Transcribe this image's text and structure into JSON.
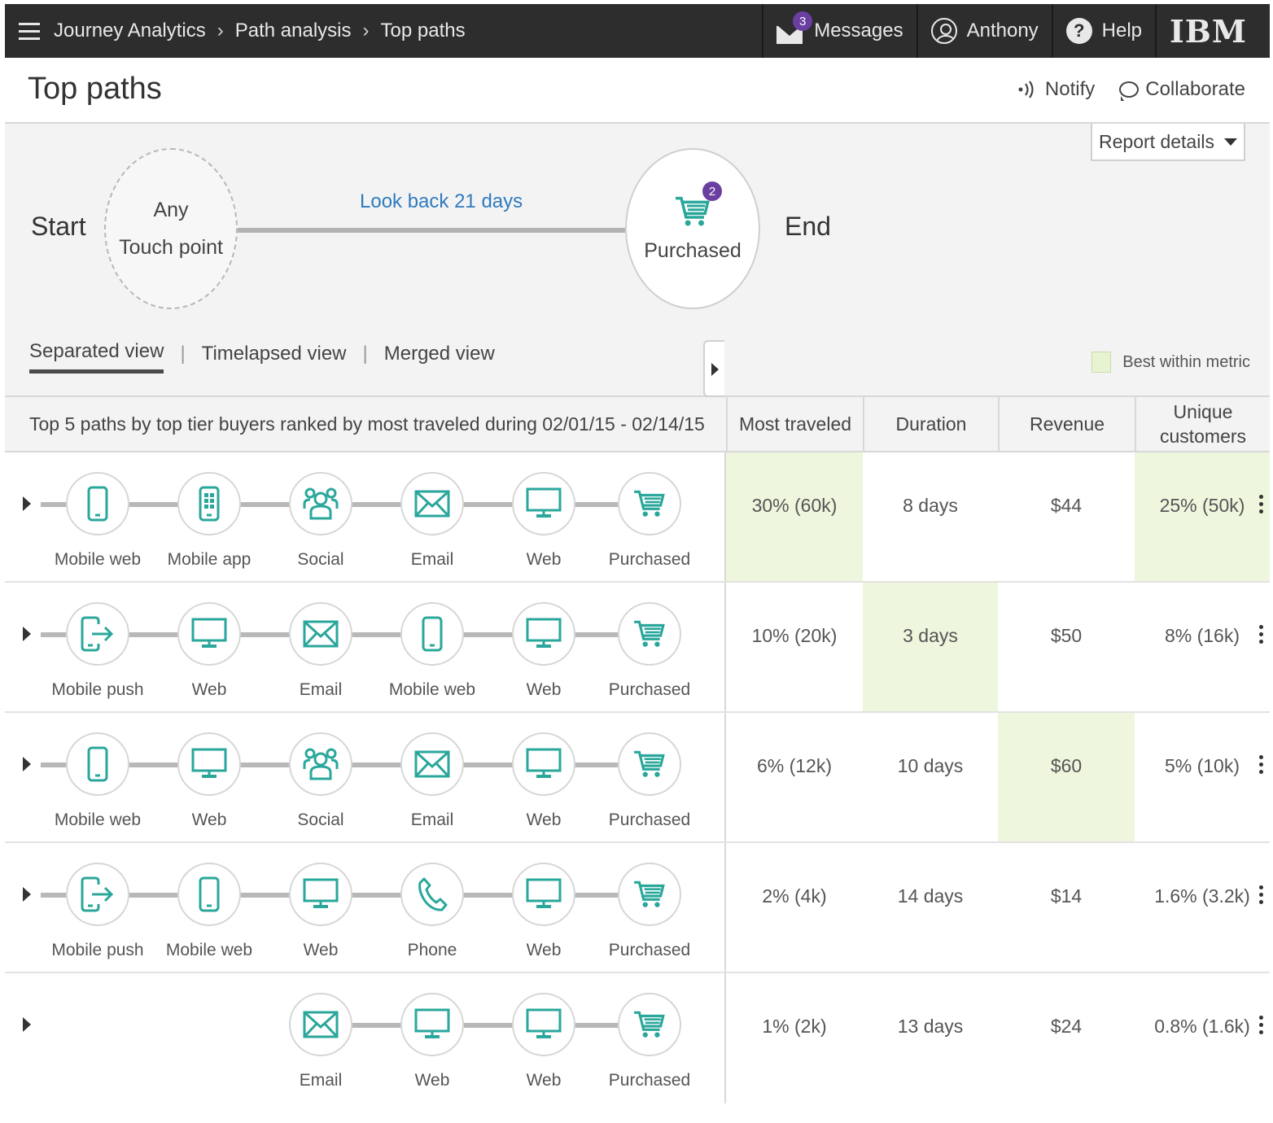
{
  "header": {
    "breadcrumbs": [
      "Journey Analytics",
      "Path analysis",
      "Top paths"
    ],
    "messages_label": "Messages",
    "messages_count": "3",
    "user_label": "Anthony",
    "help_label": "Help",
    "brand": "IBM"
  },
  "page": {
    "title": "Top paths",
    "notify_label": "Notify",
    "collaborate_label": "Collaborate"
  },
  "config": {
    "report_details_label": "Report details",
    "start_label": "Start",
    "end_label": "End",
    "start_node_line1": "Any",
    "start_node_line2": "Touch point",
    "lookback_label": "Look back 21 days",
    "end_node_label": "Purchased",
    "end_node_badge": "2",
    "views": [
      "Separated view",
      "Timelapsed view",
      "Merged view"
    ],
    "active_view": "Separated view",
    "legend_label": "Best within metric"
  },
  "table": {
    "caption": "Top 5 paths by top tier buyers ranked by most traveled during 02/01/15 - 02/14/15",
    "columns": [
      "Most traveled",
      "Duration",
      "Revenue",
      "Unique\ncustomers"
    ],
    "rows": [
      {
        "steps": [
          {
            "icon": "mobile-web-icon",
            "label": "Mobile web"
          },
          {
            "icon": "mobile-app-icon",
            "label": "Mobile app"
          },
          {
            "icon": "social-icon",
            "label": "Social"
          },
          {
            "icon": "email-icon",
            "label": "Email"
          },
          {
            "icon": "web-icon",
            "label": "Web"
          },
          {
            "icon": "cart-icon",
            "label": "Purchased"
          }
        ],
        "most_traveled": "30% (60k)",
        "duration": "8 days",
        "revenue": "$44",
        "unique": "25% (50k)",
        "best": [
          "most_traveled",
          "unique"
        ]
      },
      {
        "steps": [
          {
            "icon": "mobile-push-icon",
            "label": "Mobile push"
          },
          {
            "icon": "web-icon",
            "label": "Web"
          },
          {
            "icon": "email-icon",
            "label": "Email"
          },
          {
            "icon": "mobile-web-icon",
            "label": "Mobile web"
          },
          {
            "icon": "web-icon",
            "label": "Web"
          },
          {
            "icon": "cart-icon",
            "label": "Purchased"
          }
        ],
        "most_traveled": "10% (20k)",
        "duration": "3 days",
        "revenue": "$50",
        "unique": "8% (16k)",
        "best": [
          "duration"
        ]
      },
      {
        "steps": [
          {
            "icon": "mobile-web-icon",
            "label": "Mobile web"
          },
          {
            "icon": "web-icon",
            "label": "Web"
          },
          {
            "icon": "social-icon",
            "label": "Social"
          },
          {
            "icon": "email-icon",
            "label": "Email"
          },
          {
            "icon": "web-icon",
            "label": "Web"
          },
          {
            "icon": "cart-icon",
            "label": "Purchased"
          }
        ],
        "most_traveled": "6% (12k)",
        "duration": "10 days",
        "revenue": "$60",
        "unique": "5% (10k)",
        "best": [
          "revenue"
        ]
      },
      {
        "steps": [
          {
            "icon": "mobile-push-icon",
            "label": "Mobile push"
          },
          {
            "icon": "mobile-web-icon",
            "label": "Mobile web"
          },
          {
            "icon": "web-icon",
            "label": "Web"
          },
          {
            "icon": "phone-icon",
            "label": "Phone"
          },
          {
            "icon": "web-icon",
            "label": "Web"
          },
          {
            "icon": "cart-icon",
            "label": "Purchased"
          }
        ],
        "most_traveled": "2% (4k)",
        "duration": "14 days",
        "revenue": "$14",
        "unique": "1.6% (3.2k)",
        "best": []
      },
      {
        "steps": [
          null,
          null,
          {
            "icon": "email-icon",
            "label": "Email"
          },
          {
            "icon": "web-icon",
            "label": "Web"
          },
          {
            "icon": "web-icon",
            "label": "Web"
          },
          {
            "icon": "cart-icon",
            "label": "Purchased"
          }
        ],
        "most_traveled": "1% (2k)",
        "duration": "13 days",
        "revenue": "$24",
        "unique": "0.8% (1.6k)",
        "best": []
      }
    ]
  },
  "colors": {
    "teal": "#2aa79b",
    "best_highlight": "#eef6dd",
    "accent_purple": "#6b3fa0",
    "link_blue": "#2e7bbf"
  }
}
